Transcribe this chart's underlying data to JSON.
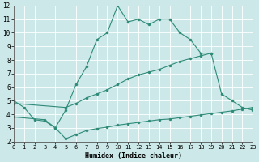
{
  "xlabel": "Humidex (Indice chaleur)",
  "bg_color": "#cce8e8",
  "grid_color": "#ddd",
  "line_color": "#2e8b78",
  "xlim": [
    0,
    23
  ],
  "ylim": [
    2,
    12
  ],
  "xticks": [
    0,
    1,
    2,
    3,
    4,
    5,
    6,
    7,
    8,
    9,
    10,
    11,
    12,
    13,
    14,
    15,
    16,
    17,
    18,
    19,
    20,
    21,
    22,
    23
  ],
  "yticks": [
    2,
    3,
    4,
    5,
    6,
    7,
    8,
    9,
    10,
    11,
    12
  ],
  "curve1": {
    "x": [
      0,
      1,
      2,
      3,
      4,
      5,
      6,
      7,
      8,
      9,
      10,
      11,
      12,
      13,
      14,
      15,
      16,
      17,
      18,
      19
    ],
    "y": [
      5.0,
      4.5,
      3.6,
      3.5,
      3.0,
      4.3,
      6.2,
      7.5,
      9.5,
      10.0,
      12.0,
      10.8,
      11.0,
      10.6,
      11.0,
      11.0,
      10.0,
      9.5,
      8.5,
      8.5
    ]
  },
  "curve2": {
    "x": [
      0,
      5,
      6,
      7,
      8,
      9,
      10,
      11,
      12,
      13,
      14,
      15,
      16,
      17,
      18,
      19,
      20,
      21,
      22,
      23
    ],
    "y": [
      4.8,
      4.5,
      4.8,
      5.2,
      5.5,
      5.8,
      6.2,
      6.6,
      6.9,
      7.1,
      7.3,
      7.6,
      7.9,
      8.1,
      8.3,
      8.5,
      5.5,
      5.0,
      4.5,
      4.3
    ]
  },
  "curve3": {
    "x": [
      0,
      3,
      4,
      5,
      6,
      7,
      8,
      9,
      10,
      11,
      12,
      13,
      14,
      15,
      16,
      17,
      18,
      19,
      20,
      21,
      22,
      23
    ],
    "y": [
      3.8,
      3.6,
      3.0,
      2.2,
      2.5,
      2.8,
      2.95,
      3.05,
      3.2,
      3.3,
      3.4,
      3.5,
      3.6,
      3.65,
      3.75,
      3.85,
      3.95,
      4.05,
      4.15,
      4.25,
      4.38,
      4.5
    ]
  }
}
